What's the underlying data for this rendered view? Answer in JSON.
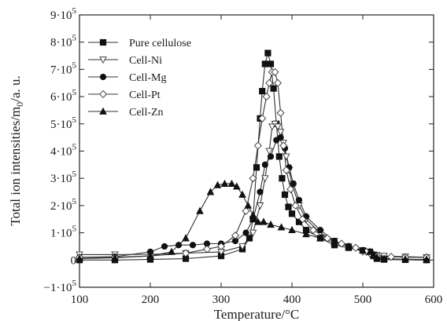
{
  "chart_data": {
    "type": "line",
    "xlabel": "Temperature/°C",
    "ylabel": "Total ion intensities/m0/a. u.",
    "xlim": [
      100,
      600
    ],
    "ylim": [
      -100000,
      900000
    ],
    "xticks": [
      100,
      200,
      300,
      400,
      500,
      600
    ],
    "xtick_labels": [
      "100",
      "200",
      "300",
      "400",
      "500",
      "600"
    ],
    "yticks": [
      -100000,
      0,
      100000,
      200000,
      300000,
      400000,
      500000,
      600000,
      700000,
      800000,
      900000
    ],
    "ytick_labels": [
      {
        "base": "−1·10",
        "exp": "5"
      },
      {
        "base": "0",
        "exp": ""
      },
      {
        "base": "1·10",
        "exp": "5"
      },
      {
        "base": "2·10",
        "exp": "5"
      },
      {
        "base": "3·10",
        "exp": "5"
      },
      {
        "base": "4·10",
        "exp": "5"
      },
      {
        "base": "5·10",
        "exp": "5"
      },
      {
        "base": "6·10",
        "exp": "5"
      },
      {
        "base": "7·10",
        "exp": "5"
      },
      {
        "base": "8·10",
        "exp": "5"
      },
      {
        "base": "9·10",
        "exp": "5"
      }
    ],
    "grid": false,
    "legend_position": "top-left",
    "series": [
      {
        "name": "Pure cellulose",
        "marker": "square",
        "x": [
          100,
          150,
          200,
          250,
          300,
          330,
          340,
          345,
          350,
          355,
          358,
          362,
          366,
          370,
          374,
          378,
          382,
          386,
          390,
          395,
          400,
          410,
          420,
          440,
          460,
          480,
          500,
          510,
          515,
          520,
          530,
          560,
          590
        ],
        "y": [
          0,
          0,
          2000,
          5000,
          15000,
          40000,
          80000,
          150000,
          340000,
          520000,
          620000,
          720000,
          760000,
          720000,
          630000,
          500000,
          380000,
          300000,
          240000,
          195000,
          170000,
          140000,
          110000,
          80000,
          55000,
          45000,
          35000,
          30000,
          15000,
          5000,
          2000,
          1000,
          0
        ]
      },
      {
        "name": "Cell-Ni",
        "marker": "triangle-down",
        "x": [
          100,
          150,
          200,
          250,
          300,
          330,
          345,
          355,
          362,
          368,
          372,
          376,
          380,
          384,
          388,
          392,
          396,
          400,
          410,
          420,
          440,
          460,
          480,
          500,
          510,
          515,
          520,
          530,
          560,
          590
        ],
        "y": [
          20000,
          20000,
          21000,
          25000,
          30000,
          50000,
          100000,
          200000,
          300000,
          400000,
          490000,
          500000,
          490000,
          470000,
          430000,
          380000,
          330000,
          280000,
          200000,
          150000,
          100000,
          70000,
          50000,
          30000,
          25000,
          20000,
          18000,
          15000,
          12000,
          10000
        ]
      },
      {
        "name": "Cell-Mg",
        "marker": "circle",
        "x": [
          100,
          150,
          200,
          220,
          240,
          260,
          280,
          300,
          320,
          335,
          345,
          355,
          362,
          370,
          378,
          384,
          390,
          396,
          402,
          410,
          420,
          440,
          460,
          480,
          500,
          510,
          515,
          520,
          530,
          560,
          590
        ],
        "y": [
          10000,
          12000,
          30000,
          50000,
          55000,
          55000,
          60000,
          60000,
          70000,
          100000,
          150000,
          250000,
          350000,
          380000,
          440000,
          450000,
          410000,
          340000,
          280000,
          220000,
          160000,
          110000,
          70000,
          50000,
          35000,
          30000,
          20000,
          5000,
          2000,
          1000,
          0
        ]
      },
      {
        "name": "Cell-Pt",
        "marker": "diamond",
        "x": [
          100,
          150,
          200,
          250,
          280,
          300,
          320,
          335,
          345,
          352,
          358,
          364,
          368,
          372,
          376,
          380,
          384,
          388,
          392,
          398,
          405,
          415,
          430,
          450,
          470,
          490,
          505,
          512,
          520,
          540,
          560,
          590
        ],
        "y": [
          10000,
          10000,
          15000,
          25000,
          40000,
          50000,
          90000,
          180000,
          300000,
          420000,
          520000,
          600000,
          650000,
          690000,
          690000,
          650000,
          540000,
          420000,
          330000,
          260000,
          200000,
          150000,
          110000,
          80000,
          60000,
          45000,
          30000,
          20000,
          15000,
          12000,
          10000,
          10000
        ]
      },
      {
        "name": "Cell-Zn",
        "marker": "triangle-up",
        "x": [
          100,
          150,
          200,
          230,
          250,
          270,
          285,
          295,
          305,
          315,
          322,
          330,
          338,
          345,
          352,
          360,
          370,
          385,
          400,
          420,
          440,
          460,
          480,
          500,
          510,
          515,
          520,
          530,
          560,
          590
        ],
        "y": [
          5000,
          8000,
          15000,
          30000,
          80000,
          180000,
          250000,
          275000,
          280000,
          280000,
          270000,
          240000,
          200000,
          165000,
          140000,
          140000,
          130000,
          120000,
          110000,
          95000,
          80000,
          65000,
          50000,
          35000,
          30000,
          20000,
          10000,
          5000,
          3000,
          2000
        ]
      }
    ]
  }
}
